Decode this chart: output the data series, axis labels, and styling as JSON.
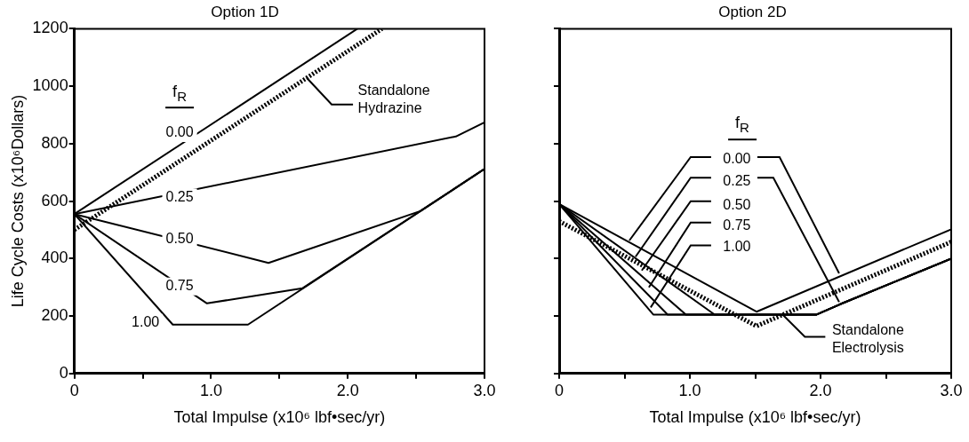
{
  "chart_data": [
    {
      "type": "line",
      "title": "Option 1D",
      "xlabel": "Total Impulse (x10⁶ lbf•sec/yr)",
      "ylabel": "Life Cycle Costs (x10⁶Dollars)",
      "xlim": [
        0,
        3
      ],
      "xticks": [
        0,
        {
          "value": 0.5,
          "label": null
        },
        {
          "value": 1,
          "label": "1.0"
        },
        {
          "value": 1.5,
          "label": null
        },
        {
          "value": 2,
          "label": "2.0"
        },
        {
          "value": 2.5,
          "label": null
        },
        {
          "value": 3,
          "label": "3.0"
        }
      ],
      "ylim": [
        0,
        1200
      ],
      "yticks": [
        0,
        200,
        400,
        600,
        800,
        1000,
        1200
      ],
      "grid": false,
      "legend": false,
      "series": [
        {
          "color": "#000000",
          "line_style": "solid",
          "x": [
            0,
            2.07
          ],
          "values": [
            555,
            1200
          ]
        },
        {
          "color": "#000000",
          "line_style": "dashed",
          "x": [
            0,
            2.25
          ],
          "values": [
            500,
            1200
          ]
        },
        {
          "color": "#000000",
          "line_style": "solid",
          "x": [
            0,
            2.79,
            3.0
          ],
          "values": [
            555,
            825,
            874
          ]
        },
        {
          "color": "#000000",
          "line_style": "solid",
          "x": [
            0,
            1.42,
            2.53,
            3.0
          ],
          "values": [
            555,
            385,
            565,
            712
          ]
        },
        {
          "color": "#000000",
          "line_style": "solid",
          "x": [
            0,
            0.97,
            1.67,
            3.0
          ],
          "values": [
            555,
            244,
            297,
            712
          ]
        },
        {
          "color": "#000000",
          "line_style": "solid",
          "x": [
            0,
            0.72,
            1.27,
            3.0
          ],
          "values": [
            555,
            170,
            170,
            712
          ]
        }
      ],
      "annotations": [
        "f$_{R}$",
        {
          "text": "0.00",
          "x": 0.77,
          "y": 837
        },
        {
          "text": "0.25",
          "x": 0.77,
          "y": 613
        },
        {
          "text": "0.50",
          "x": 0.77,
          "y": 466
        },
        {
          "text": "0.75",
          "x": 0.77,
          "y": 303
        },
        {
          "text": "1.00",
          "x": 0.52,
          "y": 176
        },
        {
          "text": "Standalone Hydrazine",
          "x": 1.7,
          "y": 1029
        }
      ]
    },
    {
      "type": "line",
      "title": "Option 2D",
      "xlabel": "Total Impulse (x10⁶ lbf•sec/yr)",
      "xlim": [
        0,
        3
      ],
      "xticks": [
        0,
        {
          "value": 0.5,
          "label": null
        },
        {
          "value": 1,
          "label": "1.0"
        },
        {
          "value": 1.5,
          "label": null
        },
        {
          "value": 2,
          "label": "2.0"
        },
        {
          "value": 2.5,
          "label": null
        },
        {
          "value": 3,
          "label": "3.0"
        }
      ],
      "ylim": [
        0,
        1200
      ],
      "yticks": [
        0,
        200,
        400,
        600,
        800,
        1000,
        1200
      ],
      "tick_labels": "x",
      "grid": false,
      "legend": false,
      "series": [
        {
          "color": "#000000",
          "line_style": "solid",
          "x": [
            0,
            1.51,
            3.0
          ],
          "values": [
            590,
            215,
            502
          ]
        },
        {
          "color": "#000000",
          "line_style": "solid",
          "x": [
            0,
            1.19,
            1.97,
            2.15,
            3.0
          ],
          "values": [
            590,
            205,
            205,
            241,
            400
          ]
        },
        {
          "color": "#000000",
          "line_style": "solid",
          "x": [
            0,
            0.97,
            1.97,
            2.15,
            3.0
          ],
          "values": [
            590,
            205,
            205,
            241,
            400
          ]
        },
        {
          "color": "#000000",
          "line_style": "solid",
          "x": [
            0,
            0.83,
            1.97,
            2.15,
            3.0
          ],
          "values": [
            590,
            205,
            205,
            241,
            400
          ]
        },
        {
          "color": "#000000",
          "line_style": "solid",
          "x": [
            0,
            0.72,
            1.97,
            2.15,
            3.0
          ],
          "values": [
            590,
            205,
            205,
            241,
            400
          ]
        },
        {
          "color": "#000000",
          "line_style": "dashed",
          "x": [
            0,
            1.51,
            3.0
          ],
          "values": [
            530,
            165,
            458
          ]
        }
      ],
      "annotations": [
        "f$_{R}$",
        {
          "text": "0.00",
          "x": 1.36,
          "y": 744
        },
        {
          "text": "0.25",
          "x": 1.36,
          "y": 669
        },
        {
          "text": "0.50",
          "x": 1.36,
          "y": 584
        },
        {
          "text": "0.75",
          "x": 1.36,
          "y": 513
        },
        {
          "text": "1.00",
          "x": 1.36,
          "y": 440
        },
        {
          "text": "Standalone Electrolysis",
          "x": 1.71,
          "y": 205
        }
      ]
    }
  ]
}
